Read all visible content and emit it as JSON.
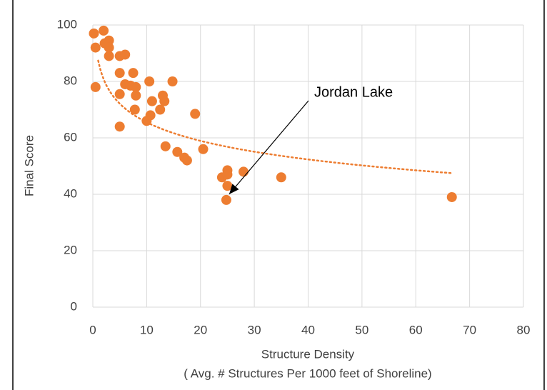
{
  "chart_data": {
    "type": "scatter",
    "xlabel": [
      "Structure Density",
      "( Avg. # Structures Per 1000 feet of Shoreline)"
    ],
    "ylabel": "Final Score",
    "color": "#ed7d31",
    "series": [
      {
        "color": "#ed7d31",
        "x": [
          0.2,
          0.5,
          0.5,
          2,
          2.2,
          3,
          3,
          3,
          5,
          6,
          5,
          5,
          6,
          7,
          7.5,
          8,
          8,
          7.8,
          5,
          10,
          10.5,
          11,
          10.7,
          12.5,
          13,
          13.3,
          13.5,
          14.8,
          15.7,
          17,
          17.5,
          19,
          20.5,
          24,
          25,
          25,
          25,
          24.8,
          28,
          35,
          66.7
        ],
        "values": [
          97,
          92,
          78,
          98,
          93.5,
          94.5,
          92,
          89,
          89,
          89.5,
          83,
          75.5,
          79,
          78.5,
          83,
          78,
          75,
          70,
          64,
          66,
          80,
          73,
          68,
          70,
          75,
          73,
          57,
          80,
          55,
          53,
          52,
          68.5,
          56,
          46,
          48.5,
          47,
          43,
          38,
          48,
          46,
          39
        ]
      }
    ],
    "trendline": {
      "kind": "log",
      "a": 87.4,
      "b": -9.5,
      "xrange": [
        1,
        66.7
      ],
      "color": "#ed7d31"
    },
    "annotations": [
      {
        "text": "Jordan Lake",
        "x": 24.8,
        "y": 38
      }
    ],
    "xlim": [
      0,
      80
    ],
    "xticks": [
      0,
      10,
      20,
      30,
      40,
      50,
      60,
      70,
      80
    ],
    "ylim": [
      0,
      100
    ],
    "yticks": [
      0,
      20,
      40,
      60,
      80,
      100
    ],
    "grid": true
  }
}
